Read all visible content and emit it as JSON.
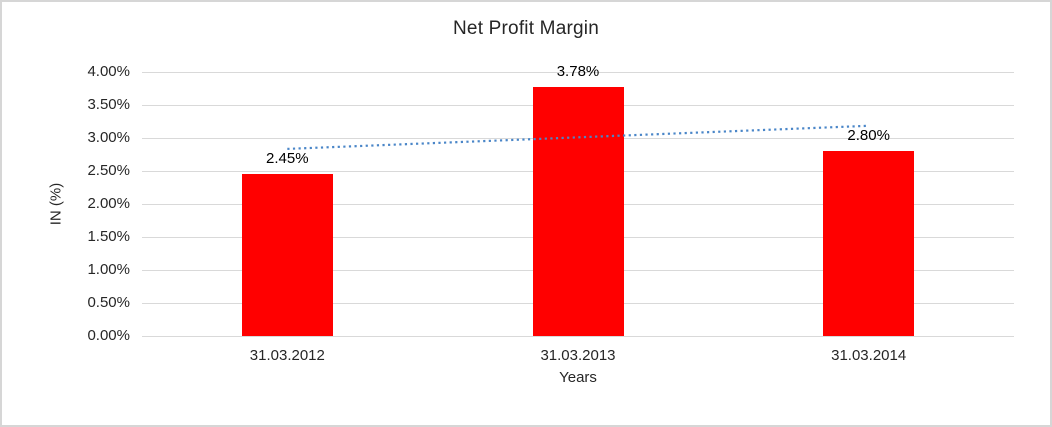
{
  "frame": {
    "border_color": "#D6D6D6",
    "background_color": "#FFFFFF"
  },
  "chart_data": {
    "type": "bar",
    "title": "Net Profit Margin",
    "categories": [
      "31.03.2012",
      "31.03.2013",
      "31.03.2014"
    ],
    "values": [
      2.45,
      3.78,
      2.8
    ],
    "data_labels": [
      "2.45%",
      "3.78%",
      "2.80%"
    ],
    "xlabel": "Years",
    "ylabel": "IN (%)",
    "ylim": [
      0,
      4
    ],
    "ytick_step": 0.5,
    "ytick_suffix": "%",
    "ytick_labels": [
      "0.00%",
      "0.50%",
      "1.00%",
      "1.50%",
      "2.00%",
      "2.50%",
      "3.00%",
      "3.50%",
      "4.00%"
    ],
    "grid": true,
    "legend": "none",
    "bar_color": "#FF0000",
    "gridline_color": "#D9D9D9",
    "text_color": "#262626",
    "trendline": {
      "type": "linear",
      "style": "dotted",
      "color": "#4A86C8",
      "start_value": 2.835,
      "end_value": 3.185
    }
  }
}
